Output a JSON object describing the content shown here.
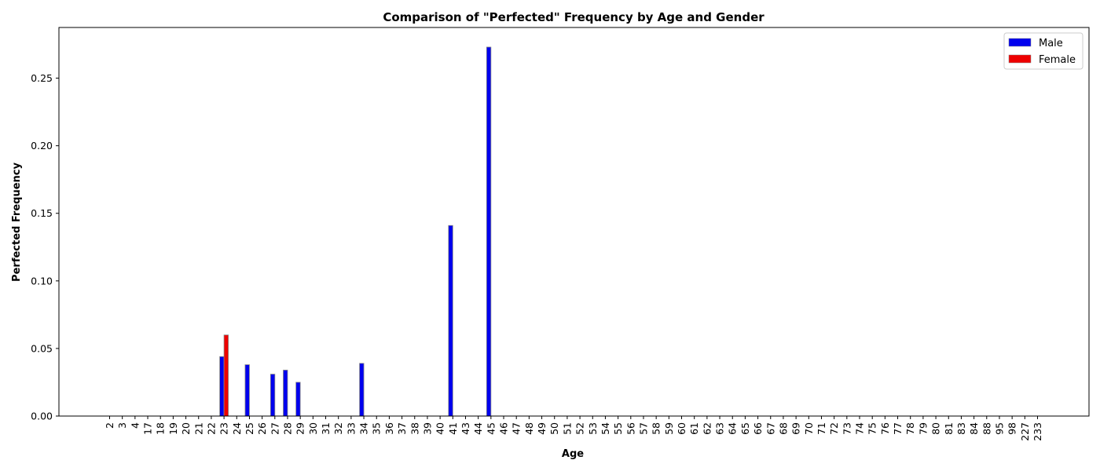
{
  "chart_data": {
    "type": "bar",
    "title": "Comparison of \"Perfected\" Frequency by Age and Gender",
    "xlabel": "Age",
    "ylabel": "Perfected Frequency",
    "ylim": [
      0,
      0.2875
    ],
    "yticks": [
      "0.00",
      "0.05",
      "0.10",
      "0.15",
      "0.20",
      "0.25"
    ],
    "ytick_values": [
      0,
      0.05,
      0.1,
      0.15,
      0.2,
      0.25
    ],
    "categories": [
      "2",
      "3",
      "4",
      "17",
      "18",
      "19",
      "20",
      "21",
      "22",
      "23",
      "24",
      "25",
      "26",
      "27",
      "28",
      "29",
      "30",
      "31",
      "32",
      "33",
      "34",
      "35",
      "36",
      "37",
      "38",
      "39",
      "40",
      "41",
      "43",
      "44",
      "45",
      "46",
      "47",
      "48",
      "49",
      "50",
      "51",
      "52",
      "53",
      "54",
      "55",
      "56",
      "57",
      "58",
      "59",
      "60",
      "61",
      "62",
      "63",
      "64",
      "65",
      "66",
      "67",
      "68",
      "69",
      "70",
      "71",
      "72",
      "73",
      "74",
      "75",
      "76",
      "77",
      "78",
      "79",
      "80",
      "81",
      "83",
      "84",
      "88",
      "95",
      "98",
      "227",
      "233"
    ],
    "series": [
      {
        "name": "Male",
        "color": "#0000ee",
        "values": [
          0,
          0,
          0,
          0,
          0,
          0,
          0,
          0,
          0,
          0.044,
          0,
          0.038,
          0,
          0.031,
          0.034,
          0.025,
          0,
          0,
          0,
          0,
          0.039,
          0,
          0,
          0,
          0,
          0,
          0,
          0.141,
          0,
          0,
          0.273,
          0,
          0,
          0,
          0,
          0,
          0,
          0,
          0,
          0,
          0,
          0,
          0,
          0,
          0,
          0,
          0,
          0,
          0,
          0,
          0,
          0,
          0,
          0,
          0,
          0,
          0,
          0,
          0,
          0,
          0,
          0,
          0,
          0,
          0,
          0,
          0,
          0,
          0,
          0,
          0,
          0,
          0,
          0
        ]
      },
      {
        "name": "Female",
        "color": "#ee0000",
        "values": [
          0,
          0,
          0,
          0,
          0,
          0,
          0,
          0,
          0,
          0.06,
          0,
          0,
          0,
          0,
          0,
          0,
          0,
          0,
          0,
          0,
          0,
          0,
          0,
          0,
          0,
          0,
          0,
          0,
          0,
          0,
          0,
          0,
          0,
          0,
          0,
          0,
          0,
          0,
          0,
          0,
          0,
          0,
          0,
          0,
          0,
          0,
          0,
          0,
          0,
          0,
          0,
          0,
          0,
          0,
          0,
          0,
          0,
          0,
          0,
          0,
          0,
          0,
          0,
          0,
          0,
          0,
          0,
          0,
          0,
          0,
          0,
          0,
          0,
          0
        ]
      }
    ],
    "grid": false,
    "legend_position": "top-right"
  }
}
